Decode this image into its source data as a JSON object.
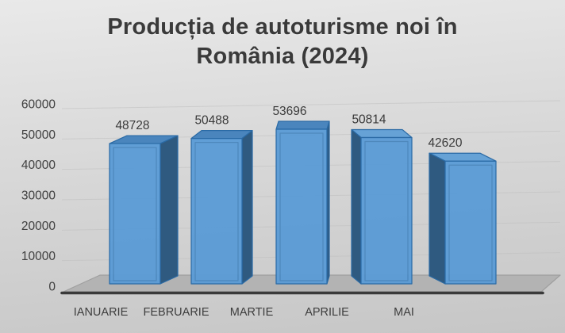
{
  "slide": {
    "title": "Producția de autoturisme noi în România (2024)",
    "title_lines": [
      "Producția de autoturisme noi în",
      "România (2024)"
    ]
  },
  "chart_data": {
    "type": "bar",
    "subtype": "3d-perspective-column",
    "title": "Producția de autoturisme noi în România (2024)",
    "categories": [
      "IANUARIE",
      "FEBRUARIE",
      "MARTIE",
      "APRILIE",
      "MAI"
    ],
    "values": [
      48728,
      50488,
      53696,
      50814,
      42620
    ],
    "data_labels": [
      "48728",
      "50488",
      "53696",
      "50814",
      "42620"
    ],
    "xlabel": "",
    "ylabel": "",
    "ylim": [
      0,
      60000
    ],
    "ytick_step": 10000,
    "ytick_labels": [
      "0",
      "10000",
      "20000",
      "30000",
      "40000",
      "50000",
      "60000"
    ],
    "grid": true,
    "legend": false,
    "colors": {
      "bar_front": "#5b9bd5",
      "bar_top_right_lit": "#4a85bd",
      "bar_top_left_lit": "#66a2d6",
      "bar_side": "#2f5a80",
      "bar_edge": "#2a6aa5",
      "bar_inner_edge": "#1f4e79",
      "floor": "#b3b3b3",
      "floor_edge": "#9f9f9f",
      "axis_line": "#3a3a3a",
      "gridline": "#bfbfbf",
      "text": "#3d3d3d"
    }
  }
}
